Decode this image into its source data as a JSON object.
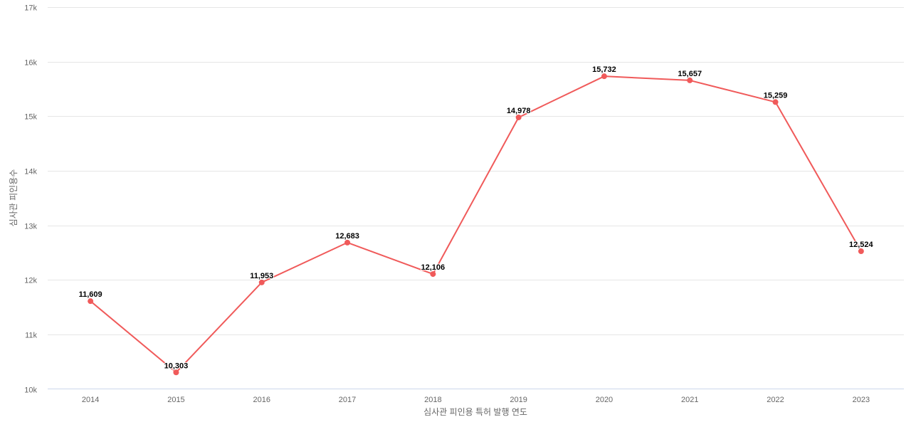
{
  "chart_data": {
    "type": "line",
    "title": "",
    "xlabel": "심사관 피인용 특허 발행 연도",
    "ylabel": "심사관 피인용수",
    "categories": [
      "2014",
      "2015",
      "2016",
      "2017",
      "2018",
      "2019",
      "2020",
      "2021",
      "2022",
      "2023"
    ],
    "series": [
      {
        "name": "심사관 피인용수",
        "color": "#f05a5a",
        "values": [
          11609,
          10303,
          11953,
          12683,
          12106,
          14978,
          15732,
          15657,
          15259,
          12524
        ],
        "labels": [
          "11,609",
          "10,303",
          "11,953",
          "12,683",
          "12,106",
          "14,978",
          "15,732",
          "15,657",
          "15,259",
          "12,524"
        ]
      }
    ],
    "ylim": [
      10000,
      17000
    ],
    "yticks": [
      10000,
      11000,
      12000,
      13000,
      14000,
      15000,
      16000,
      17000
    ],
    "ytick_labels": [
      "10k",
      "11k",
      "12k",
      "13k",
      "14k",
      "15k",
      "16k",
      "17k"
    ],
    "grid": true,
    "legend": "none"
  }
}
